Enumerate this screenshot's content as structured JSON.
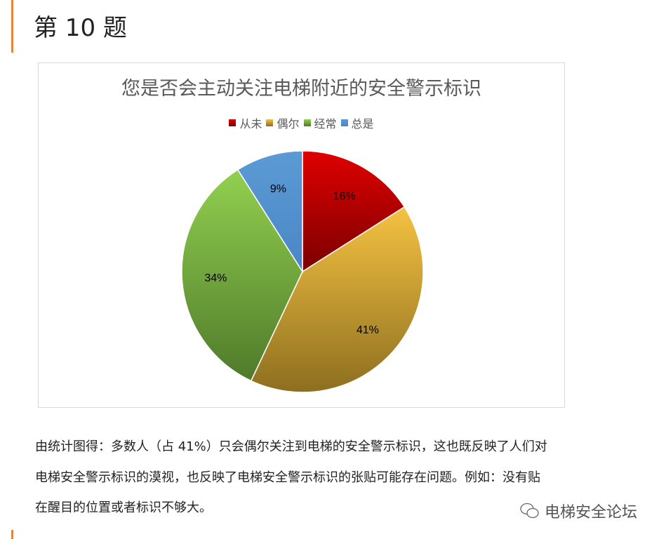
{
  "heading": "第 10 题",
  "chart_data": {
    "type": "pie",
    "title": "您是否会主动关注电梯附近的安全警示标识",
    "legend_position": "top",
    "categories": [
      "从未",
      "偶尔",
      "经常",
      "总是"
    ],
    "values": [
      16,
      41,
      34,
      9
    ],
    "labels": [
      "16%",
      "41%",
      "34%",
      "9%"
    ],
    "colors": [
      "#e00000",
      "#f5c242",
      "#92d050",
      "#5b9bd5"
    ],
    "dark_colors": [
      "#7a0000",
      "#8e6f20",
      "#4f7a2a",
      "#4a86c5"
    ]
  },
  "paragraph": [
    "由统计图得：多数人（占 41%）只会偶尔关注到电梯的安全警示标识，这也既反映了人们对",
    "电梯安全警示标识的漠视，也反映了电梯安全警示标识的张贴可能存在问题。例如：没有贴",
    "在醒目的位置或者标识不够大。"
  ],
  "watermark": "电梯安全论坛"
}
